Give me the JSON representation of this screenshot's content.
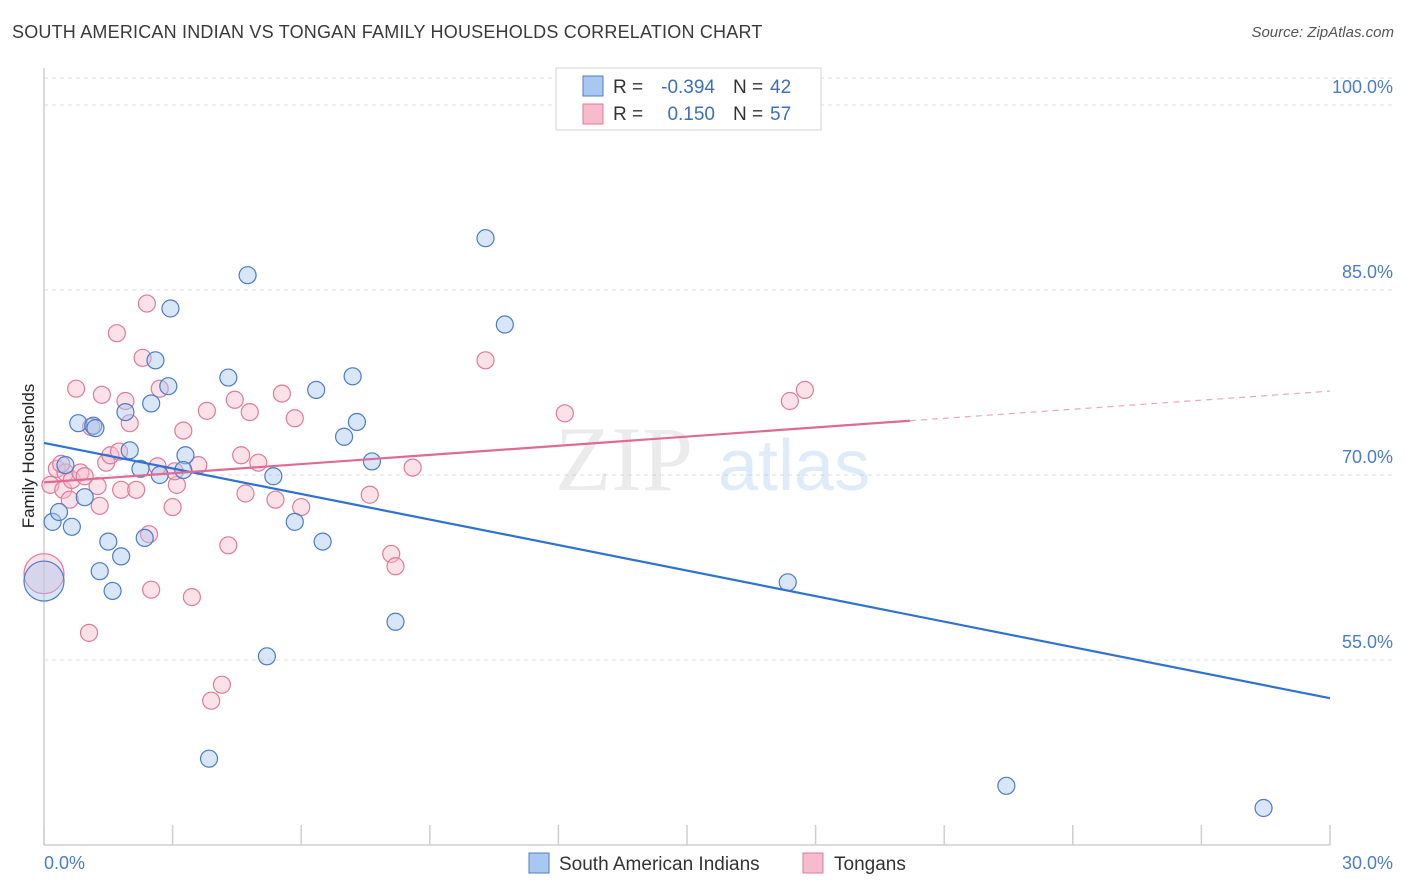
{
  "title": "SOUTH AMERICAN INDIAN VS TONGAN FAMILY HOUSEHOLDS CORRELATION CHART",
  "source": "Source: ZipAtlas.com",
  "colors": {
    "blue_fill": "#a9c8f0",
    "blue_stroke": "#4a7cc9",
    "blue_line": "#2f72d6",
    "pink_fill": "#f6bccd",
    "pink_stroke": "#e07a9b",
    "pink_line": "#e06a92",
    "grid": "#dddddd",
    "tick_label": "#4a7cc9"
  },
  "legend": {
    "rows": [
      {
        "r_label": "R =",
        "r_value": "-0.394",
        "n_label": "N =",
        "n_value": "42",
        "color": "blue"
      },
      {
        "r_label": "R =",
        "r_value": "0.150",
        "n_label": "N =",
        "n_value": "57",
        "color": "pink"
      }
    ]
  },
  "watermark": {
    "zip": "ZIP",
    "atlas": "atlas"
  },
  "chart_data": {
    "type": "scatter",
    "title": "SOUTH AMERICAN INDIAN VS TONGAN FAMILY HOUSEHOLDS CORRELATION CHART",
    "xlabel": "",
    "ylabel": "Family Households",
    "xlim": [
      0,
      30
    ],
    "ylim": [
      40,
      103
    ],
    "x_tick_labels": [
      "0.0%",
      "30.0%"
    ],
    "y_ticks": [
      55,
      70,
      85,
      100
    ],
    "y_tick_labels": [
      "55.0%",
      "70.0%",
      "85.0%",
      "100.0%"
    ],
    "grid": true,
    "legend_position": "bottom-center",
    "series": [
      {
        "name": "South American Indians",
        "color": "blue",
        "R": -0.394,
        "N": 42,
        "trend": {
          "x0": 0,
          "y0": 72.6,
          "x1": 30,
          "y1": 51.9
        },
        "points": [
          [
            0.0,
            61.4,
            "large"
          ],
          [
            0.2,
            66.2
          ],
          [
            0.35,
            67.0
          ],
          [
            0.5,
            70.8
          ],
          [
            0.65,
            65.8
          ],
          [
            0.8,
            74.2
          ],
          [
            0.95,
            68.2
          ],
          [
            1.15,
            74.0
          ],
          [
            1.2,
            73.8
          ],
          [
            1.3,
            62.2
          ],
          [
            1.5,
            64.6
          ],
          [
            1.6,
            60.6
          ],
          [
            1.8,
            63.4
          ],
          [
            1.9,
            75.1
          ],
          [
            2.0,
            72.0
          ],
          [
            2.25,
            70.5
          ],
          [
            2.35,
            64.9
          ],
          [
            2.5,
            75.8
          ],
          [
            2.6,
            79.3
          ],
          [
            2.7,
            70.0
          ],
          [
            2.9,
            77.2
          ],
          [
            2.95,
            83.5
          ],
          [
            3.3,
            71.6
          ],
          [
            3.25,
            70.4
          ],
          [
            3.85,
            47.0
          ],
          [
            4.3,
            77.9
          ],
          [
            4.75,
            86.2
          ],
          [
            5.2,
            55.3
          ],
          [
            5.35,
            69.9
          ],
          [
            5.85,
            66.2
          ],
          [
            6.35,
            76.9
          ],
          [
            6.5,
            64.6
          ],
          [
            7.0,
            73.1
          ],
          [
            7.2,
            78.0
          ],
          [
            7.3,
            74.3
          ],
          [
            7.65,
            71.1
          ],
          [
            8.2,
            58.1
          ],
          [
            10.3,
            89.2
          ],
          [
            10.75,
            82.2
          ],
          [
            17.35,
            61.3
          ],
          [
            22.45,
            44.8
          ],
          [
            28.45,
            43.0
          ]
        ]
      },
      {
        "name": "Tongans",
        "color": "pink",
        "R": 0.15,
        "N": 57,
        "trend": {
          "x0": 0,
          "y0": 69.4,
          "x1": 20.2,
          "y1": 74.4,
          "dash_x1": 30,
          "dash_y1": 76.8
        },
        "points": [
          [
            0.0,
            62.0,
            "large"
          ],
          [
            0.15,
            69.2
          ],
          [
            0.3,
            70.5
          ],
          [
            0.45,
            68.8
          ],
          [
            0.5,
            70.2
          ],
          [
            0.6,
            68.0
          ],
          [
            0.65,
            69.6
          ],
          [
            0.75,
            77.0
          ],
          [
            0.85,
            70.2
          ],
          [
            0.95,
            69.9
          ],
          [
            1.05,
            57.2
          ],
          [
            1.1,
            73.9
          ],
          [
            1.3,
            67.5
          ],
          [
            1.35,
            76.5
          ],
          [
            1.45,
            71.0
          ],
          [
            1.55,
            71.6
          ],
          [
            1.7,
            81.5
          ],
          [
            1.75,
            71.9
          ],
          [
            1.8,
            68.8
          ],
          [
            1.9,
            76.0
          ],
          [
            2.0,
            74.2
          ],
          [
            2.15,
            68.8
          ],
          [
            2.3,
            79.5
          ],
          [
            2.4,
            83.9
          ],
          [
            2.45,
            65.2
          ],
          [
            2.5,
            60.7
          ],
          [
            2.65,
            70.7
          ],
          [
            2.7,
            77.0
          ],
          [
            3.0,
            67.4
          ],
          [
            3.1,
            69.2
          ],
          [
            3.25,
            73.6
          ],
          [
            3.45,
            60.1
          ],
          [
            3.6,
            70.8
          ],
          [
            3.8,
            75.2
          ],
          [
            3.9,
            51.7
          ],
          [
            4.15,
            53.0
          ],
          [
            4.3,
            64.3
          ],
          [
            4.45,
            76.1
          ],
          [
            4.6,
            71.6
          ],
          [
            4.7,
            68.5
          ],
          [
            4.8,
            75.1
          ],
          [
            5.0,
            71.0
          ],
          [
            5.55,
            76.6
          ],
          [
            5.4,
            68.0
          ],
          [
            5.85,
            74.6
          ],
          [
            6.0,
            67.4
          ],
          [
            7.6,
            68.4
          ],
          [
            8.1,
            63.6
          ],
          [
            8.2,
            62.6
          ],
          [
            8.6,
            70.6
          ],
          [
            10.3,
            79.3
          ],
          [
            12.15,
            75.0
          ],
          [
            17.4,
            76.0
          ],
          [
            17.75,
            76.9
          ],
          [
            3.05,
            70.3
          ],
          [
            0.4,
            70.9
          ],
          [
            1.25,
            69.1
          ]
        ]
      }
    ]
  }
}
